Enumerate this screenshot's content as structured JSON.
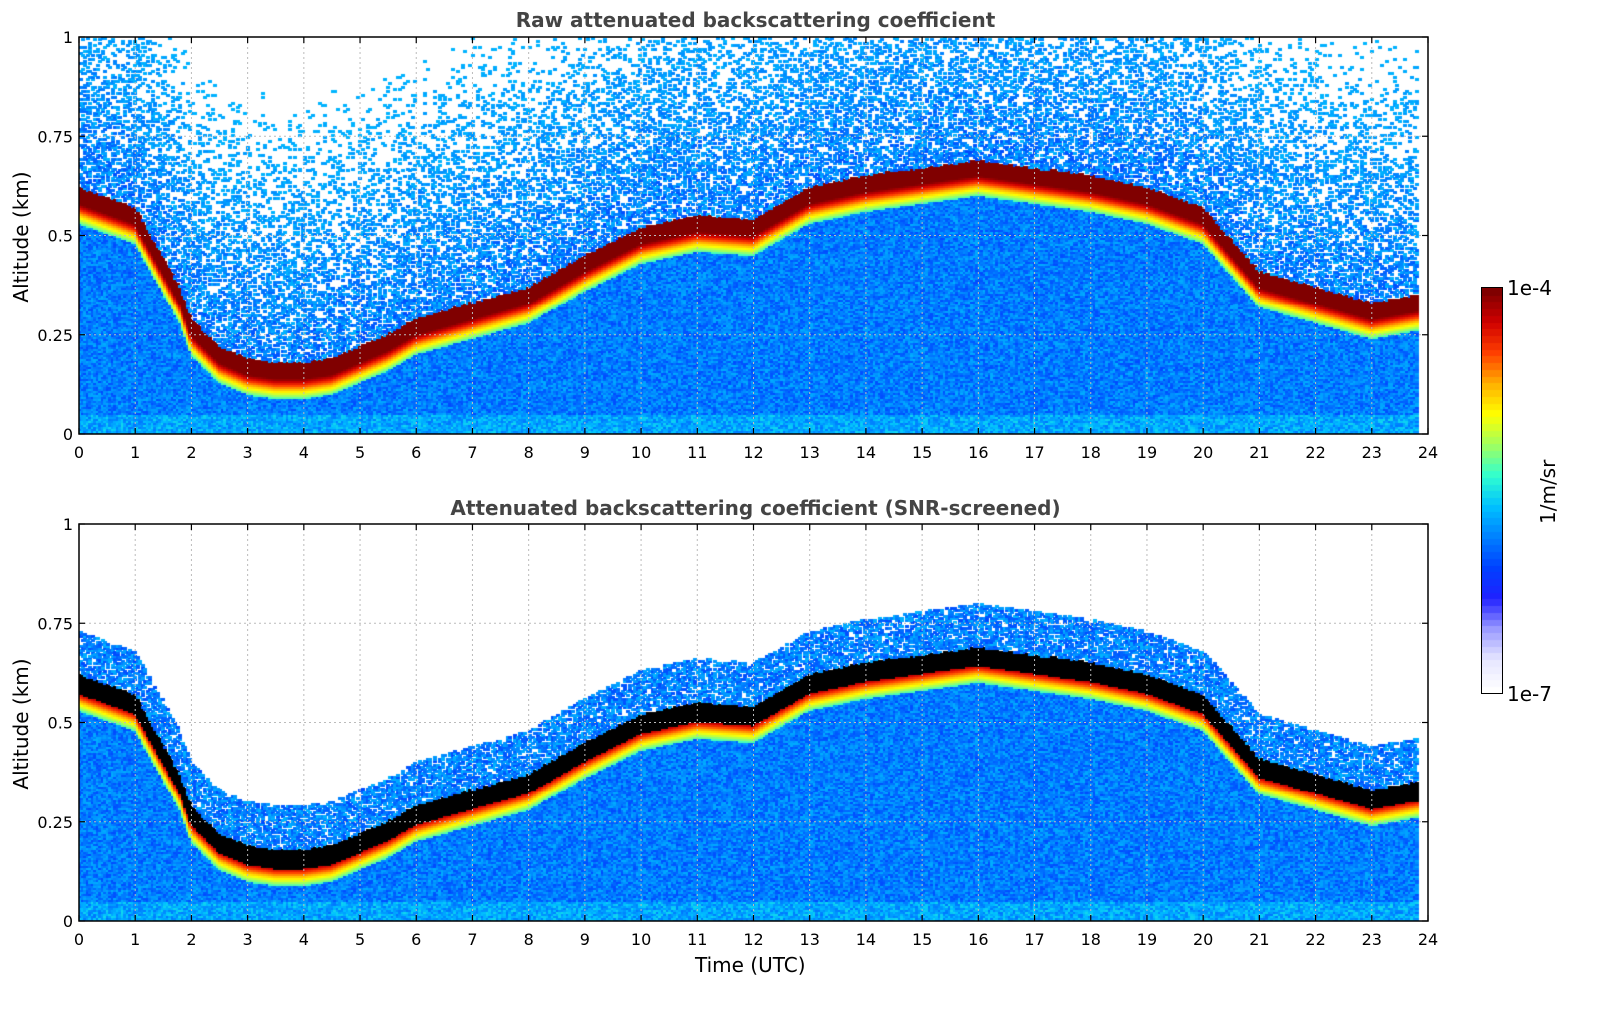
{
  "colors": {
    "colormap": [
      "#ffffff",
      "#e6e6ff",
      "#9a9aff",
      "#2020ff",
      "#0040ff",
      "#0080ff",
      "#00c0ff",
      "#30ffd0",
      "#a0ff60",
      "#ffff00",
      "#ffb000",
      "#ff4000",
      "#d00000",
      "#800000"
    ],
    "saturated_screened": "#000000",
    "title_color": "#444444",
    "grid_color": "#bbbbbb"
  },
  "colorbar": {
    "label": "1/m/sr",
    "min_label": "1e-7",
    "max_label": "1e-4",
    "scale": "log"
  },
  "chart_data": [
    {
      "type": "heatmap",
      "title": "Raw attenuated backscattering coefficient",
      "xlabel": "",
      "ylabel": "Altitude (km)",
      "xlim": [
        0,
        24
      ],
      "ylim": [
        0,
        1
      ],
      "x_ticks": [
        "0",
        "1",
        "2",
        "3",
        "4",
        "5",
        "6",
        "7",
        "8",
        "9",
        "10",
        "11",
        "12",
        "13",
        "14",
        "15",
        "16",
        "17",
        "18",
        "19",
        "20",
        "21",
        "22",
        "23",
        "24"
      ],
      "y_ticks": [
        "0",
        "0.25",
        "0.5",
        "0.75",
        "1"
      ],
      "data_end_hour": 23.8,
      "grid": true,
      "screened": false,
      "cloud_layer_base_km": [
        [
          0,
          0.55
        ],
        [
          1,
          0.5
        ],
        [
          1.8,
          0.3
        ],
        [
          2,
          0.22
        ],
        [
          2.5,
          0.15
        ],
        [
          3,
          0.12
        ],
        [
          3.5,
          0.11
        ],
        [
          4,
          0.11
        ],
        [
          4.5,
          0.12
        ],
        [
          5,
          0.15
        ],
        [
          5.5,
          0.18
        ],
        [
          6,
          0.22
        ],
        [
          7,
          0.26
        ],
        [
          8,
          0.3
        ],
        [
          9,
          0.38
        ],
        [
          10,
          0.45
        ],
        [
          11,
          0.48
        ],
        [
          12,
          0.47
        ],
        [
          13,
          0.55
        ],
        [
          14,
          0.58
        ],
        [
          15,
          0.6
        ],
        [
          16,
          0.62
        ],
        [
          17,
          0.6
        ],
        [
          18,
          0.58
        ],
        [
          19,
          0.55
        ],
        [
          20,
          0.5
        ],
        [
          20.5,
          0.42
        ],
        [
          21,
          0.34
        ],
        [
          22,
          0.3
        ],
        [
          23,
          0.26
        ],
        [
          23.8,
          0.28
        ]
      ]
    },
    {
      "type": "heatmap",
      "title": "Attenuated backscattering coefficient (SNR-screened)",
      "xlabel": "Time (UTC)",
      "ylabel": "Altitude (km)",
      "xlim": [
        0,
        24
      ],
      "ylim": [
        0,
        1
      ],
      "x_ticks": [
        "0",
        "1",
        "2",
        "3",
        "4",
        "5",
        "6",
        "7",
        "8",
        "9",
        "10",
        "11",
        "12",
        "13",
        "14",
        "15",
        "16",
        "17",
        "18",
        "19",
        "20",
        "21",
        "22",
        "23",
        "24"
      ],
      "y_ticks": [
        "0",
        "0.25",
        "0.5",
        "0.75",
        "1"
      ],
      "data_end_hour": 23.8,
      "grid": true,
      "screened": true,
      "cloud_layer_base_km": [
        [
          0,
          0.55
        ],
        [
          1,
          0.5
        ],
        [
          1.8,
          0.3
        ],
        [
          2,
          0.22
        ],
        [
          2.5,
          0.15
        ],
        [
          3,
          0.12
        ],
        [
          3.5,
          0.11
        ],
        [
          4,
          0.11
        ],
        [
          4.5,
          0.12
        ],
        [
          5,
          0.15
        ],
        [
          5.5,
          0.18
        ],
        [
          6,
          0.22
        ],
        [
          7,
          0.26
        ],
        [
          8,
          0.3
        ],
        [
          9,
          0.38
        ],
        [
          10,
          0.45
        ],
        [
          11,
          0.48
        ],
        [
          12,
          0.47
        ],
        [
          13,
          0.55
        ],
        [
          14,
          0.58
        ],
        [
          15,
          0.6
        ],
        [
          16,
          0.62
        ],
        [
          17,
          0.6
        ],
        [
          18,
          0.58
        ],
        [
          19,
          0.55
        ],
        [
          20,
          0.5
        ],
        [
          20.5,
          0.42
        ],
        [
          21,
          0.34
        ],
        [
          22,
          0.3
        ],
        [
          23,
          0.26
        ],
        [
          23.8,
          0.28
        ]
      ]
    }
  ]
}
